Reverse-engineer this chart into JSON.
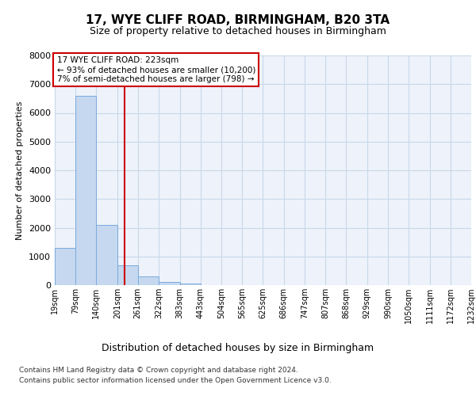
{
  "title": "17, WYE CLIFF ROAD, BIRMINGHAM, B20 3TA",
  "subtitle": "Size of property relative to detached houses in Birmingham",
  "xlabel": "Distribution of detached houses by size in Birmingham",
  "ylabel": "Number of detached properties",
  "footer_line1": "Contains HM Land Registry data © Crown copyright and database right 2024.",
  "footer_line2": "Contains public sector information licensed under the Open Government Licence v3.0.",
  "annotation_line1": "17 WYE CLIFF ROAD: 223sqm",
  "annotation_line2": "← 93% of detached houses are smaller (10,200)",
  "annotation_line3": "7% of semi-detached houses are larger (798) →",
  "bar_edges": [
    19,
    79,
    140,
    201,
    261,
    322,
    383,
    443,
    504,
    565,
    625,
    686,
    747,
    807,
    868,
    929,
    990,
    1050,
    1111,
    1172,
    1232
  ],
  "bar_heights": [
    1300,
    6600,
    2100,
    700,
    300,
    120,
    60,
    0,
    0,
    0,
    0,
    0,
    0,
    0,
    0,
    0,
    0,
    0,
    0,
    0
  ],
  "bar_color": "#c5d8f0",
  "bar_edge_color": "#7aaadc",
  "vline_color": "#cc0000",
  "vline_x": 223,
  "ylim": [
    0,
    8000
  ],
  "yticks": [
    0,
    1000,
    2000,
    3000,
    4000,
    5000,
    6000,
    7000,
    8000
  ],
  "grid_color": "#c8d8e8",
  "bg_color": "#eef2fa",
  "annotation_box_color": "#cc0000",
  "annotation_bg": "white",
  "title_fontsize": 11,
  "subtitle_fontsize": 9
}
